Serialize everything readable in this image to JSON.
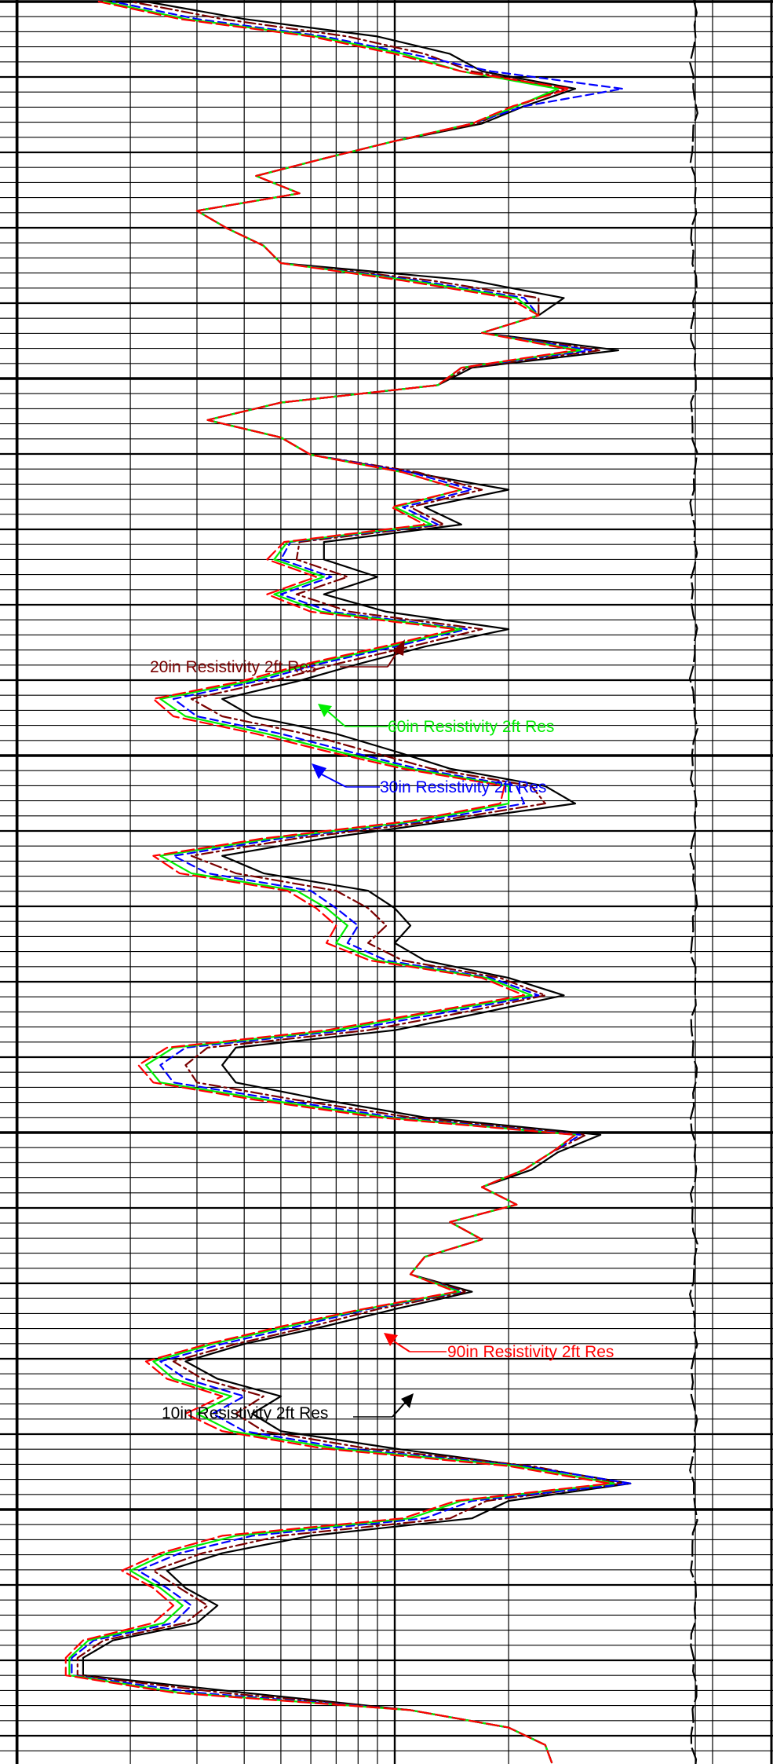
{
  "chart_data": {
    "type": "line",
    "title": "",
    "xscale": "log",
    "legend": "inline annotations with arrows",
    "grid": true,
    "series": [
      {
        "name": "10in Resistivity 2ft Res",
        "color": "#000000",
        "dash": "solid",
        "values": [
          26,
          25,
          20,
          11,
          4.0,
          1.5,
          1.5,
          1.8,
          3.0,
          3.4,
          2.8,
          2.5,
          3.5,
          6.0,
          16.0,
          20,
          42,
          22,
          10,
          5.0,
          4.2,
          5.0,
          3.4,
          2.8,
          4.0,
          6.5,
          10,
          16,
          11,
          12,
          17,
          14,
          21,
          17,
          23,
          27,
          35,
          12,
          6.5,
          3.8,
          3.5,
          3.8,
          10,
          17,
          28,
          20,
          12,
          10,
          11,
          10,
          8.5,
          4.5,
          3.5,
          6.5,
          14,
          30,
          25,
          14,
          10,
          7.0,
          4.2,
          3.5,
          5.5,
          8.0,
          12,
          20,
          9.5,
          6.5,
          9.0,
          6.5,
          6.5,
          15,
          12,
          20,
          11,
          6.0,
          5.0,
          3.2,
          5.0,
          13,
          16,
          39,
          17,
          24,
          28,
          16,
          5.0,
          4.5,
          3.6,
          3.0,
          5.6,
          4.3,
          6.5,
          10,
          17,
          22,
          30,
          17,
          14,
          9.0,
          4.0,
          2.2
        ]
      },
      {
        "name": "20in Resistivity 2ft Res",
        "color": "#7a0000",
        "dash": "dash-dot",
        "values": [
          26,
          25,
          20,
          11,
          3.5,
          1.45,
          1.45,
          1.7,
          2.8,
          3.2,
          2.7,
          2.3,
          3.1,
          5.0,
          14.0,
          17.5,
          40,
          23,
          8.5,
          4.5,
          3.8,
          4.5,
          3.1,
          2.6,
          3.8,
          6.0,
          9.0,
          15.5,
          11,
          12,
          17,
          14,
          21,
          17,
          22,
          26,
          32,
          11,
          5.5,
          3.0,
          2.8,
          3.2,
          8.5,
          15,
          25,
          19,
          10.5,
          8.5,
          9.5,
          8.5,
          7.0,
          3.8,
          2.9,
          5.5,
          13,
          25,
          23,
          12.5,
          8.5,
          5.8,
          3.5,
          2.9,
          4.7,
          7.0,
          11,
          17,
          7.6,
          5.5,
          7.5,
          5.5,
          5.6,
          13.5,
          11,
          17,
          11.5,
          6.0,
          5.0,
          3.2,
          5.0,
          13,
          15.5,
          35,
          17,
          24,
          24,
          12.5,
          5.0,
          4.5,
          3.6,
          3.0,
          5.6,
          4.3,
          6.5,
          10,
          16.5,
          21,
          28,
          16,
          12,
          7.5,
          3.5,
          2.0
        ]
      },
      {
        "name": "30in Resistivity 2ft Res",
        "color": "#0000ff",
        "dash": "dashed",
        "values": [
          26,
          25,
          20,
          11,
          3.0,
          1.4,
          1.4,
          1.6,
          2.6,
          2.9,
          2.5,
          2.1,
          2.7,
          4.2,
          12.0,
          16.0,
          42,
          22,
          7.5,
          4.0,
          3.3,
          4.0,
          2.8,
          2.4,
          3.5,
          5.5,
          8.5,
          15.0,
          11,
          12,
          17,
          14,
          21,
          17,
          22,
          26,
          31,
          10,
          5.0,
          2.6,
          2.4,
          2.8,
          7.5,
          13.5,
          24,
          18,
          9.5,
          7.5,
          8.0,
          7.0,
          6.0,
          3.2,
          2.6,
          5.0,
          12,
          22,
          21,
          11.5,
          7.5,
          5.0,
          3.0,
          2.6,
          4.3,
          6.3,
          10,
          15.5,
          6.8,
          5.0,
          6.8,
          5.0,
          5.3,
          13,
          10.5,
          16,
          11,
          6.0,
          5.0,
          3.2,
          5.0,
          13,
          15,
          33,
          17,
          24,
          22,
          11.5,
          5.0,
          4.5,
          3.6,
          3.0,
          5.6,
          4.3,
          6.5,
          10,
          16,
          22,
          40,
          18,
          11,
          6.5,
          3.0,
          1.8
        ]
      },
      {
        "name": "60in Resistivity 2ft Res",
        "color": "#00ee00",
        "dash": "solid",
        "values": [
          26,
          25,
          20,
          11,
          2.7,
          1.38,
          1.38,
          1.55,
          2.45,
          2.75,
          2.4,
          2.0,
          2.5,
          3.8,
          11.0,
          15.0,
          38,
          21,
          7.0,
          3.7,
          3.0,
          3.7,
          2.6,
          2.3,
          3.3,
          5.2,
          8.3,
          14.8,
          11,
          12,
          17,
          14,
          21,
          17,
          22,
          26,
          30,
          9.5,
          4.6,
          2.4,
          2.2,
          2.6,
          7.0,
          12.5,
          23,
          17.5,
          9.0,
          7.0,
          7.5,
          6.6,
          5.5,
          2.9,
          2.4,
          4.7,
          11.5,
          20,
          20,
          11,
          7.0,
          4.6,
          2.8,
          2.4,
          4.1,
          6.0,
          9.6,
          15,
          6.4,
          4.8,
          6.5,
          4.8,
          5.2,
          12.5,
          10,
          15,
          10.5,
          6.0,
          5.0,
          3.2,
          5.0,
          13,
          15,
          31,
          17,
          24,
          21,
          11,
          5.0,
          4.5,
          3.6,
          3.0,
          5.6,
          4.3,
          6.5,
          10,
          16,
          21,
          27,
          15,
          10.5,
          6.2,
          2.8,
          1.7
        ]
      },
      {
        "name": "90in Resistivity 2ft Res",
        "color": "#ff0000",
        "dash": "long-dash",
        "values": [
          26,
          25,
          20,
          11,
          2.6,
          1.35,
          1.35,
          1.5,
          2.3,
          2.6,
          2.3,
          1.9,
          2.4,
          3.5,
          10.5,
          14.5,
          37,
          20,
          6.5,
          3.5,
          2.8,
          3.5,
          2.5,
          2.2,
          3.2,
          5.0,
          8.2,
          14.5,
          11,
          12,
          17,
          14,
          21,
          17,
          22,
          26,
          30,
          9.0,
          4.3,
          2.3,
          2.1,
          2.5,
          6.6,
          12,
          22,
          17,
          8.6,
          6.6,
          7.0,
          6.2,
          5.2,
          2.7,
          2.3,
          4.5,
          11,
          19,
          19.5,
          10.5,
          6.6,
          4.3,
          2.6,
          2.3,
          3.9,
          5.8,
          9.3,
          14.5,
          6.0,
          4.6,
          6.2,
          4.6,
          5.1,
          12,
          9.8,
          15,
          10.5,
          6.0,
          5.0,
          3.2,
          5.0,
          13,
          15,
          30,
          17,
          24,
          20,
          10.5,
          5.0,
          4.5,
          3.6,
          3.0,
          5.6,
          4.3,
          6.5,
          10,
          16,
          20.5,
          29,
          15,
          10,
          6.0,
          2.7,
          1.65
        ]
      }
    ],
    "annotations": [
      {
        "text": "20in Resistivity 2ft Res",
        "color": "#7a0000",
        "series": 1
      },
      {
        "text": "60in Resistivity 2ft Res",
        "color": "#00ee00",
        "series": 3
      },
      {
        "text": "30in Resistivity 2ft Res",
        "color": "#0000ff",
        "series": 2
      },
      {
        "text": "90in Resistivity 2ft Res",
        "color": "#ff0000",
        "series": 4
      },
      {
        "text": "10in Resistivity 2ft Res",
        "color": "#000000",
        "series": 0
      }
    ],
    "side_curve": {
      "color": "#000000",
      "dash": "long-dash"
    }
  }
}
